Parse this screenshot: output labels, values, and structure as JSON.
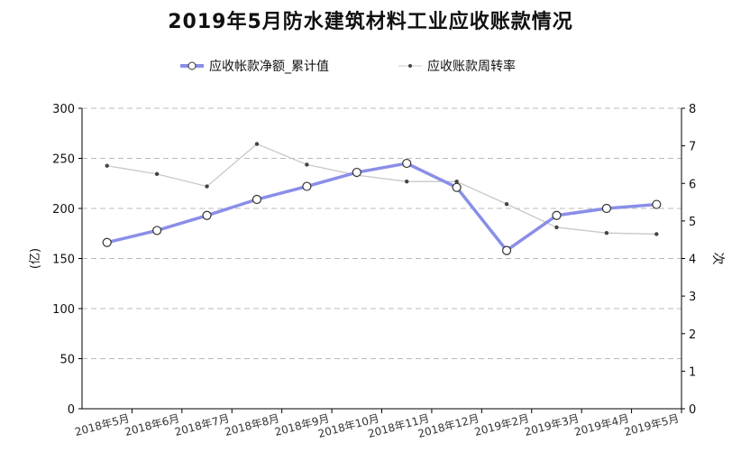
{
  "chart_data": {
    "type": "line",
    "title": "2019年5月防水建筑材料工业应收账款情况",
    "categories": [
      "2018年5月",
      "2018年6月",
      "2018年7月",
      "2018年8月",
      "2018年9月",
      "2018年10月",
      "2018年11月",
      "2018年12月",
      "2019年2月",
      "2019年3月",
      "2019年4月",
      "2019年5月"
    ],
    "series": [
      {
        "name": "应收帐款净额_累计值",
        "axis": "left",
        "color": "#8a8ee8",
        "values": [
          166,
          178,
          193,
          209,
          222,
          236,
          245,
          221,
          158,
          193,
          200,
          204
        ]
      },
      {
        "name": "应收账款周转率",
        "axis": "right",
        "color": "#c8c8c8",
        "values": [
          6.47,
          6.25,
          5.92,
          7.05,
          6.5,
          6.22,
          6.05,
          6.05,
          5.45,
          4.83,
          4.68,
          4.65
        ]
      }
    ],
    "ylabel_left": "(亿)",
    "ylabel_right": "次",
    "ylim_left": [
      0,
      300
    ],
    "yticks_left": [
      "0",
      "50",
      "100",
      "150",
      "200",
      "250",
      "300"
    ],
    "ylim_right": [
      0,
      8
    ],
    "yticks_right": [
      "0",
      "1",
      "2",
      "3",
      "4",
      "5",
      "6",
      "7",
      "8"
    ],
    "grid": true,
    "legend_position": "top-center"
  }
}
